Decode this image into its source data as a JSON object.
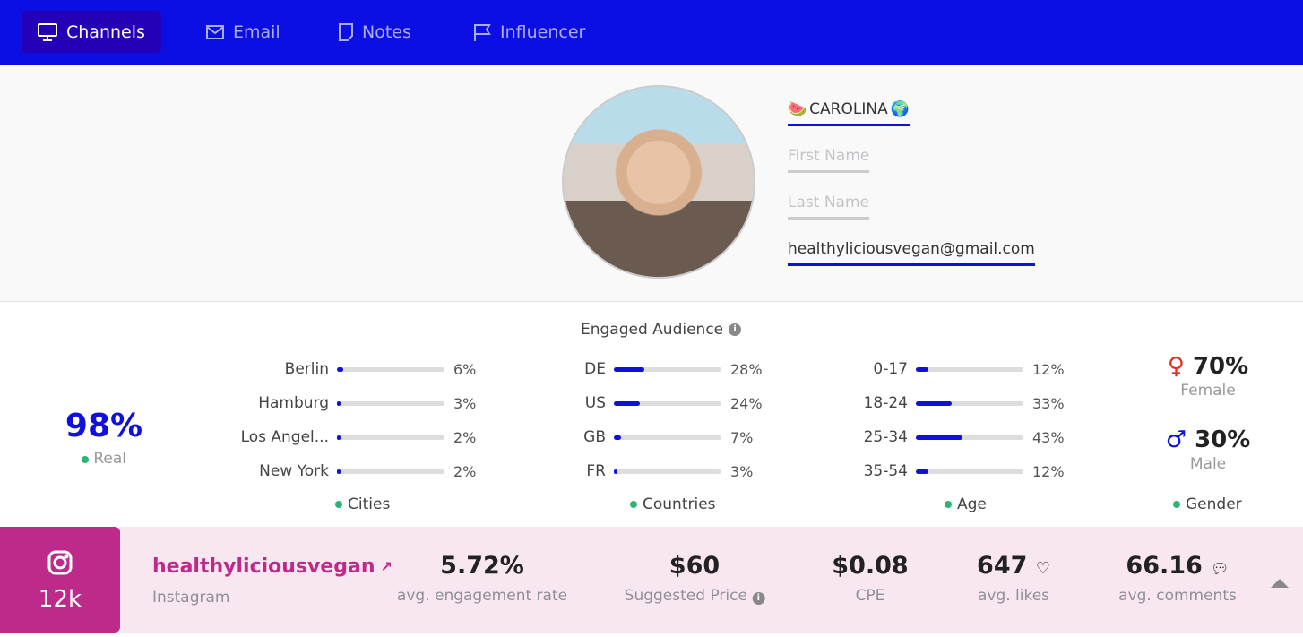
{
  "nav": {
    "tabs": [
      {
        "label": "Channels",
        "icon": "monitor-icon",
        "active": true
      },
      {
        "label": "Email",
        "icon": "envelope-icon"
      },
      {
        "label": "Notes",
        "icon": "note-icon"
      },
      {
        "label": "Influencer",
        "icon": "flag-icon"
      }
    ]
  },
  "profile": {
    "display_name": "CAROLINA",
    "emoji_left": "🍉",
    "emoji_right": "🌍",
    "first_name_placeholder": "First Name",
    "last_name_placeholder": "Last Name",
    "email": "healthyliciousvegan@gmail.com"
  },
  "audience": {
    "title": "Engaged Audience",
    "real": {
      "value": "98%",
      "label": "Real"
    },
    "cities": {
      "label": "Cities",
      "items": [
        {
          "name": "Berlin",
          "pct": 6,
          "text": "6%"
        },
        {
          "name": "Hamburg",
          "pct": 3,
          "text": "3%"
        },
        {
          "name": "Los Angel...",
          "pct": 2,
          "text": "2%"
        },
        {
          "name": "New York",
          "pct": 2,
          "text": "2%"
        }
      ]
    },
    "countries": {
      "label": "Countries",
      "items": [
        {
          "name": "DE",
          "pct": 28,
          "text": "28%"
        },
        {
          "name": "US",
          "pct": 24,
          "text": "24%"
        },
        {
          "name": "GB",
          "pct": 7,
          "text": "7%"
        },
        {
          "name": "FR",
          "pct": 3,
          "text": "3%"
        }
      ]
    },
    "age": {
      "label": "Age",
      "items": [
        {
          "name": "0-17",
          "pct": 12,
          "text": "12%"
        },
        {
          "name": "18-24",
          "pct": 33,
          "text": "33%"
        },
        {
          "name": "25-34",
          "pct": 43,
          "text": "43%"
        },
        {
          "name": "35-54",
          "pct": 12,
          "text": "12%"
        }
      ]
    },
    "gender": {
      "label": "Gender",
      "female": {
        "value": "70%",
        "label": "Female",
        "color": "#e0301e"
      },
      "male": {
        "value": "30%",
        "label": "Male",
        "color": "#1010dd"
      }
    }
  },
  "channel": {
    "followers": "12k",
    "handle": "healthyliciousvegan",
    "platform": "Instagram",
    "metrics": [
      {
        "value": "5.72%",
        "label": "avg. engagement rate"
      },
      {
        "value": "$60",
        "label": "Suggested Price"
      },
      {
        "value": "$0.08",
        "label": "CPE"
      },
      {
        "value": "647",
        "label": "avg. likes"
      },
      {
        "value": "66.16",
        "label": "avg. comments"
      }
    ]
  },
  "colors": {
    "nav": "#0c0fe3",
    "accent": "#1010dd",
    "instagram": "#bd2a8a",
    "real_dot": "#2bb673"
  }
}
